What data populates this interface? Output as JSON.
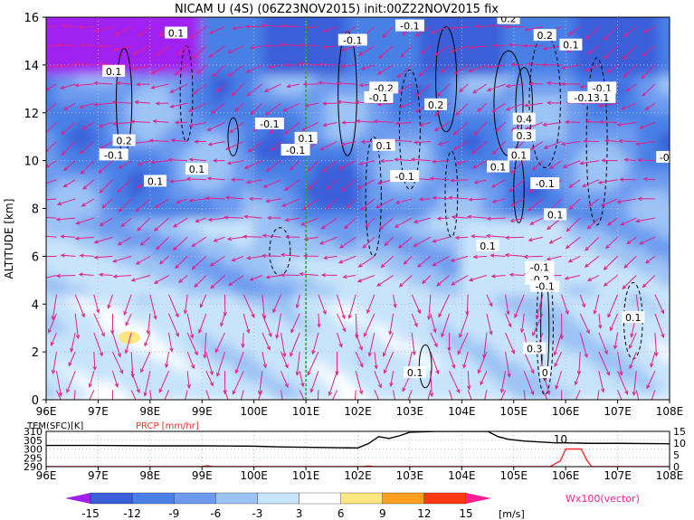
{
  "chart_data": [
    {
      "type": "heatmap",
      "title": "NICAM U (4S) (06Z23NOV2015) init:00Z22NOV2015 fix",
      "ylabel": "ALTITUDE [km]",
      "xlim": [
        96,
        108
      ],
      "ylim": [
        0,
        16
      ],
      "x_ticks": [
        96,
        97,
        98,
        99,
        100,
        101,
        102,
        103,
        104,
        105,
        106,
        107,
        108
      ],
      "x_tick_labels": [
        "96E",
        "97E",
        "98E",
        "99E",
        "100E",
        "101E",
        "102E",
        "103E",
        "104E",
        "105E",
        "106E",
        "107E",
        "108E"
      ],
      "y_ticks": [
        0,
        2,
        4,
        6,
        8,
        10,
        12,
        14,
        16
      ],
      "y_tick_labels": [
        "0",
        "2",
        "4",
        "6",
        "8",
        "10",
        "12",
        "14",
        "16"
      ],
      "grid": true,
      "reference_line_x": 101,
      "reference_line_color": "#22aa22",
      "contour_labels": [
        {
          "x": 98.5,
          "y": 15.3,
          "text": "0.1"
        },
        {
          "x": 97.3,
          "y": 13.7,
          "text": "0.1"
        },
        {
          "x": 101.9,
          "y": 15.0,
          "text": "-0.1"
        },
        {
          "x": 103.0,
          "y": 15.6,
          "text": "-0.1"
        },
        {
          "x": 104.9,
          "y": 15.9,
          "text": "0.2"
        },
        {
          "x": 105.6,
          "y": 15.2,
          "text": "0.2"
        },
        {
          "x": 106.1,
          "y": 14.8,
          "text": "0.1"
        },
        {
          "x": 102.5,
          "y": 13.0,
          "text": "-0.2"
        },
        {
          "x": 102.4,
          "y": 12.6,
          "text": "-0.1"
        },
        {
          "x": 103.5,
          "y": 12.3,
          "text": "0.2"
        },
        {
          "x": 106.7,
          "y": 13.0,
          "text": "-0.1"
        },
        {
          "x": 106.5,
          "y": 12.6,
          "text": "-0.13.1"
        },
        {
          "x": 100.3,
          "y": 11.5,
          "text": "-0.1"
        },
        {
          "x": 101.0,
          "y": 10.9,
          "text": "0.1"
        },
        {
          "x": 100.8,
          "y": 10.4,
          "text": "-0.1"
        },
        {
          "x": 102.5,
          "y": 10.6,
          "text": "0.1"
        },
        {
          "x": 105.2,
          "y": 11.7,
          "text": "0.4"
        },
        {
          "x": 105.2,
          "y": 11.0,
          "text": "0.3"
        },
        {
          "x": 105.1,
          "y": 10.2,
          "text": "0.1"
        },
        {
          "x": 97.5,
          "y": 10.8,
          "text": "0.2"
        },
        {
          "x": 97.3,
          "y": 10.2,
          "text": "-0.1"
        },
        {
          "x": 98.9,
          "y": 9.6,
          "text": "0.1"
        },
        {
          "x": 98.1,
          "y": 9.1,
          "text": "0.1"
        },
        {
          "x": 102.9,
          "y": 9.3,
          "text": "-0.1"
        },
        {
          "x": 104.7,
          "y": 9.7,
          "text": "0.1"
        },
        {
          "x": 105.6,
          "y": 9.0,
          "text": "-0.1"
        },
        {
          "x": 107.9,
          "y": 10.1,
          "text": "-0"
        },
        {
          "x": 105.8,
          "y": 7.7,
          "text": "0.1"
        },
        {
          "x": 104.5,
          "y": 6.4,
          "text": "0.1"
        },
        {
          "x": 105.5,
          "y": 5.5,
          "text": "-0.1"
        },
        {
          "x": 105.5,
          "y": 5.0,
          "text": "-0.2"
        },
        {
          "x": 105.6,
          "y": 4.7,
          "text": "-0.1"
        },
        {
          "x": 107.3,
          "y": 3.4,
          "text": "0.1"
        },
        {
          "x": 105.4,
          "y": 2.1,
          "text": "0.3"
        },
        {
          "x": 103.1,
          "y": 1.1,
          "text": "0.1"
        },
        {
          "x": 105.6,
          "y": 1.1,
          "text": "0"
        }
      ]
    },
    {
      "type": "line",
      "title": "",
      "left_axis_label": "TEM(SFC)[K]",
      "right_axis_label": "PRCP [mm/hr]",
      "xlim": [
        96,
        108
      ],
      "ylim_left": [
        290,
        310
      ],
      "ylim_right": [
        0,
        15
      ],
      "left_ticks": [
        "310",
        "305",
        "300",
        "295",
        "290"
      ],
      "right_ticks": [
        "15",
        "10",
        "5",
        "0"
      ],
      "x_tick_labels": [
        "96E",
        "97E",
        "98E",
        "99E",
        "100E",
        "101E",
        "102E",
        "103E",
        "104E",
        "105E",
        "106E",
        "107E",
        "108E"
      ],
      "series": [
        {
          "name": "TEM(SFC)[K]",
          "color": "#000000",
          "x": [
            96,
            97,
            98,
            99,
            100,
            100.5,
            101,
            101.5,
            102,
            102.2,
            102.4,
            102.6,
            102.8,
            103.0,
            103.5,
            104.0,
            104.5,
            104.7,
            104.9,
            105.2,
            105.5,
            105.8,
            106.0,
            106.5,
            107,
            108
          ],
          "y": [
            302,
            302,
            301.8,
            301.8,
            301.6,
            301.2,
            301.0,
            300.8,
            300.6,
            303,
            307,
            306,
            307.5,
            309.5,
            310,
            310,
            310,
            307,
            305.5,
            304.5,
            304,
            303.5,
            303.5,
            303.2,
            303.2,
            303
          ]
        },
        {
          "name": "PRCP [mm/hr]",
          "color": "#ff2a2a",
          "x": [
            96,
            99,
            99.1,
            99.2,
            101,
            102.1,
            102.2,
            102.3,
            105.7,
            105.9,
            106.0,
            106.3,
            106.4,
            106.5,
            108
          ],
          "y": [
            0,
            0,
            0.4,
            0,
            0,
            0,
            0.3,
            0,
            0,
            2.5,
            7.5,
            7.5,
            3,
            0,
            0
          ]
        }
      ],
      "annotation": "10",
      "annotation_x": 105.9,
      "annotation_y": 306
    },
    {
      "type": "colorbar",
      "unit": "[m/s]",
      "bounds": [
        -15,
        -12,
        -9,
        -6,
        -3,
        3,
        6,
        9,
        12,
        15
      ],
      "labels": [
        "-15",
        "-12",
        "-9",
        "-6",
        "-3",
        "3",
        "6",
        "9",
        "12",
        "15"
      ],
      "colors": [
        "#a020f0",
        "#3a5fd9",
        "#4a80e6",
        "#6d9bef",
        "#9cc3f5",
        "#c8e4fa",
        "#ffffff",
        "#ffe680",
        "#ffa020",
        "#ff3a10",
        "#c40010",
        "#ff1e96"
      ],
      "vector_label": "Wx100(vector)"
    }
  ]
}
